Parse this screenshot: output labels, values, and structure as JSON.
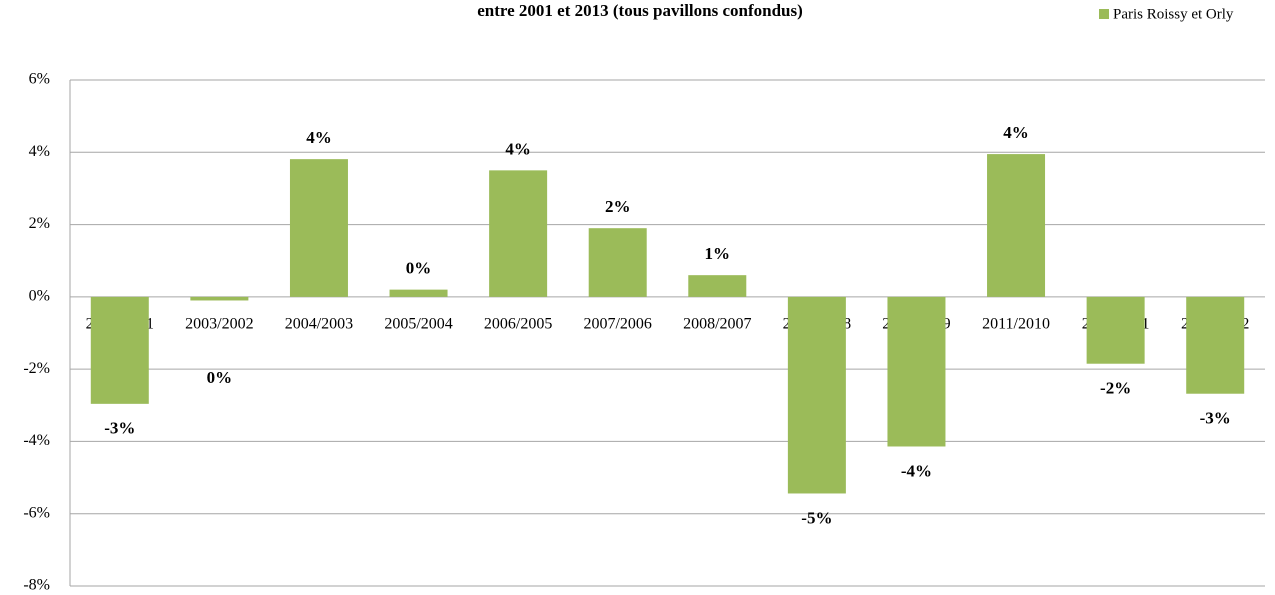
{
  "chart_data": {
    "type": "bar",
    "title": "entre 2001 et 2013 (tous pavillons confondus)",
    "categories": [
      "2002/2001",
      "2003/2002",
      "2004/2003",
      "2005/2004",
      "2006/2005",
      "2007/2006",
      "2008/2007",
      "2009/2008",
      "2010/2009",
      "2011/2010",
      "2012/2011",
      "2013/2012"
    ],
    "series": [
      {
        "name": "Paris Roissy et Orly",
        "color": "#9bbb59",
        "values": [
          -2.96,
          -0.1,
          3.81,
          0.2,
          3.5,
          1.9,
          0.6,
          -5.44,
          -4.14,
          3.95,
          -1.85,
          -2.68
        ],
        "value_labels": [
          "-3%",
          "0%",
          "4%",
          "0%",
          "4%",
          "2%",
          "1%",
          "-5%",
          "-4%",
          "4%",
          "-2%",
          "-3%"
        ]
      }
    ],
    "ylim": [
      -8,
      6
    ],
    "yticks": [
      {
        "value": -8,
        "label": "-8%"
      },
      {
        "value": -6,
        "label": "-6%"
      },
      {
        "value": -4,
        "label": "-4%"
      },
      {
        "value": -2,
        "label": "-2%"
      },
      {
        "value": 0,
        "label": "0%"
      },
      {
        "value": 2,
        "label": "2%"
      },
      {
        "value": 4,
        "label": "4%"
      },
      {
        "value": 6,
        "label": "6%"
      }
    ],
    "grid": true,
    "legend": "top-right"
  }
}
